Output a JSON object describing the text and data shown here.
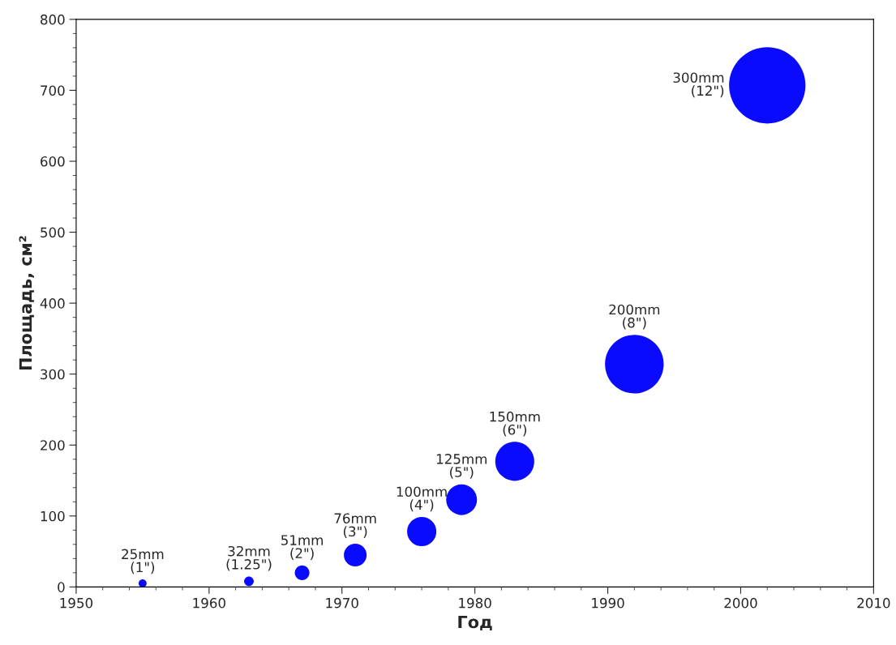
{
  "chart_data": {
    "type": "bubble",
    "xlabel": "Год",
    "ylabel": "Площадь, см²",
    "x": [
      1955,
      1963,
      1967,
      1971,
      1976,
      1979,
      1983,
      1992,
      2002
    ],
    "values": [
      5,
      8,
      20,
      45,
      78,
      123,
      177,
      314,
      707
    ],
    "sizes": [
      0.011,
      0.016,
      0.037,
      0.089,
      0.147,
      0.163,
      0.26,
      0.59,
      1
    ],
    "color": "#0a0aff",
    "annotations": [
      "25mm\n(1\")",
      "32mm\n(1.25\")",
      "51mm\n(2\")",
      "76mm\n(3\")",
      "100mm\n(4\")",
      "125mm\n(5\")",
      "150mm\n(6\")",
      "200mm\n(8\")",
      "300mm\n(12\")"
    ],
    "xlim": [
      1950,
      2010
    ],
    "xticks": [
      1950,
      1960,
      1970,
      1980,
      1990,
      2000,
      2010
    ],
    "ylim": [
      0,
      800
    ],
    "yticks": [
      0,
      100,
      200,
      300,
      400,
      500,
      600,
      700,
      800
    ],
    "grid": false,
    "legend": false
  }
}
